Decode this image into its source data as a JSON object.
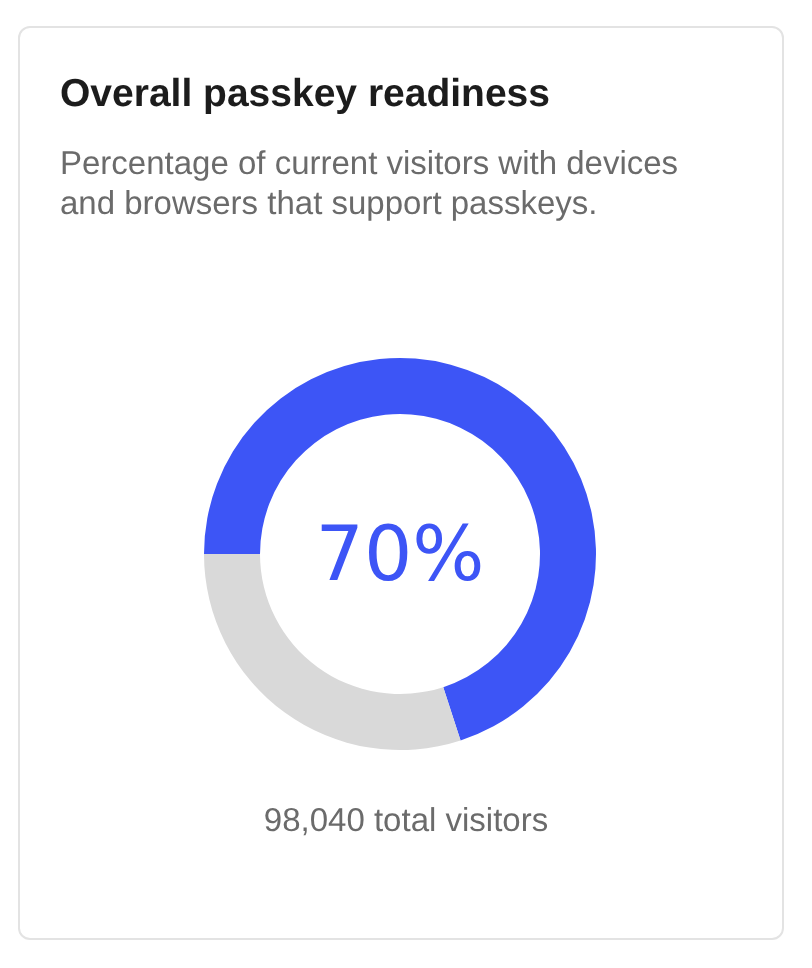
{
  "chart_data": {
    "type": "donut",
    "title": "Overall passkey readiness",
    "subtitle": "Percentage of current visitors with devices and browsers that support passkeys.",
    "categories": [
      null,
      null
    ],
    "values": [
      70,
      30
    ],
    "colors": [
      "#3d55f6",
      "#d9d9d9"
    ],
    "value_labels": [
      "70%",
      null
    ],
    "annotations": [
      "98,040 total visitors"
    ]
  }
}
